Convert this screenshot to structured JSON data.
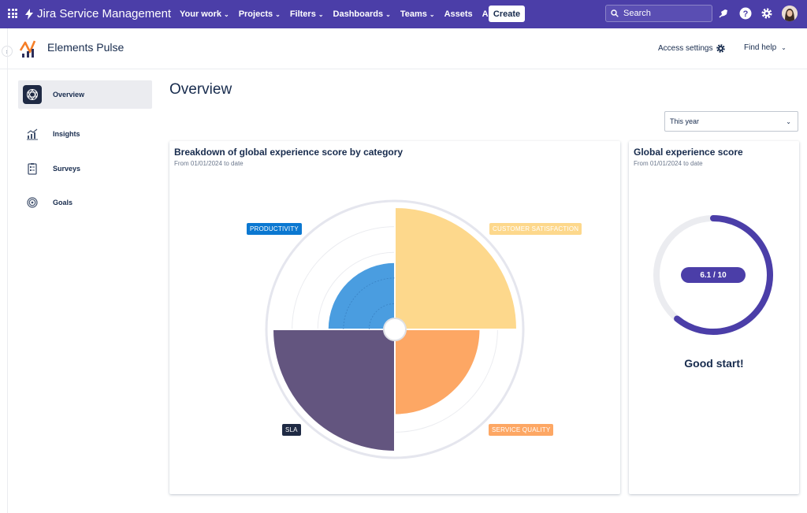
{
  "topnav": {
    "brand": "Jira Service Management",
    "items": [
      "Your work",
      "Projects",
      "Filters",
      "Dashboards",
      "Teams",
      "Assets",
      "Apps"
    ],
    "items_with_chevron": [
      true,
      true,
      true,
      true,
      true,
      false,
      true
    ],
    "create_label": "Create",
    "search_placeholder": "Search",
    "icons": [
      "notifications-icon",
      "help-icon",
      "settings-icon",
      "avatar"
    ],
    "background": "#4b3ea8"
  },
  "subheader": {
    "app_title": "Elements Pulse",
    "access_settings": "Access settings",
    "find_help": "Find help"
  },
  "sidebar": {
    "items": [
      {
        "label": "Overview",
        "icon": "overview-icon",
        "active": true
      },
      {
        "label": "Insights",
        "icon": "insights-icon",
        "active": false
      },
      {
        "label": "Surveys",
        "icon": "surveys-icon",
        "active": false
      },
      {
        "label": "Goals",
        "icon": "goals-icon",
        "active": false
      }
    ]
  },
  "main": {
    "title": "Overview",
    "period": "This year"
  },
  "breakdown_card": {
    "title": "Breakdown of global experience score by category",
    "subtitle": "From 01/01/2024 to date",
    "labels": {
      "productivity": "PRODUCTIVITY",
      "customer_satisfaction": "CUSTOMER SATISFACTION",
      "sla": "SLA",
      "service_quality": "SERVICE QUALITY"
    }
  },
  "score_card": {
    "title": "Global experience score",
    "subtitle": "From 01/01/2024 to date",
    "score_text": "6.1 / 10",
    "message": "Good start!"
  },
  "chart_data": [
    {
      "type": "polar-area",
      "categories": [
        "PRODUCTIVITY",
        "CUSTOMER SATISFACTION",
        "SERVICE QUALITY",
        "SLA"
      ],
      "values": [
        0.55,
        1.0,
        0.7,
        1.0
      ],
      "colors": [
        "#4a9de0",
        "#fdd88c",
        "#fda764",
        "#63557f"
      ],
      "grid": true
    },
    {
      "type": "gauge",
      "value": 6.1,
      "max": 10,
      "color": "#4b3ea8",
      "track_color": "#ebecf0"
    }
  ]
}
